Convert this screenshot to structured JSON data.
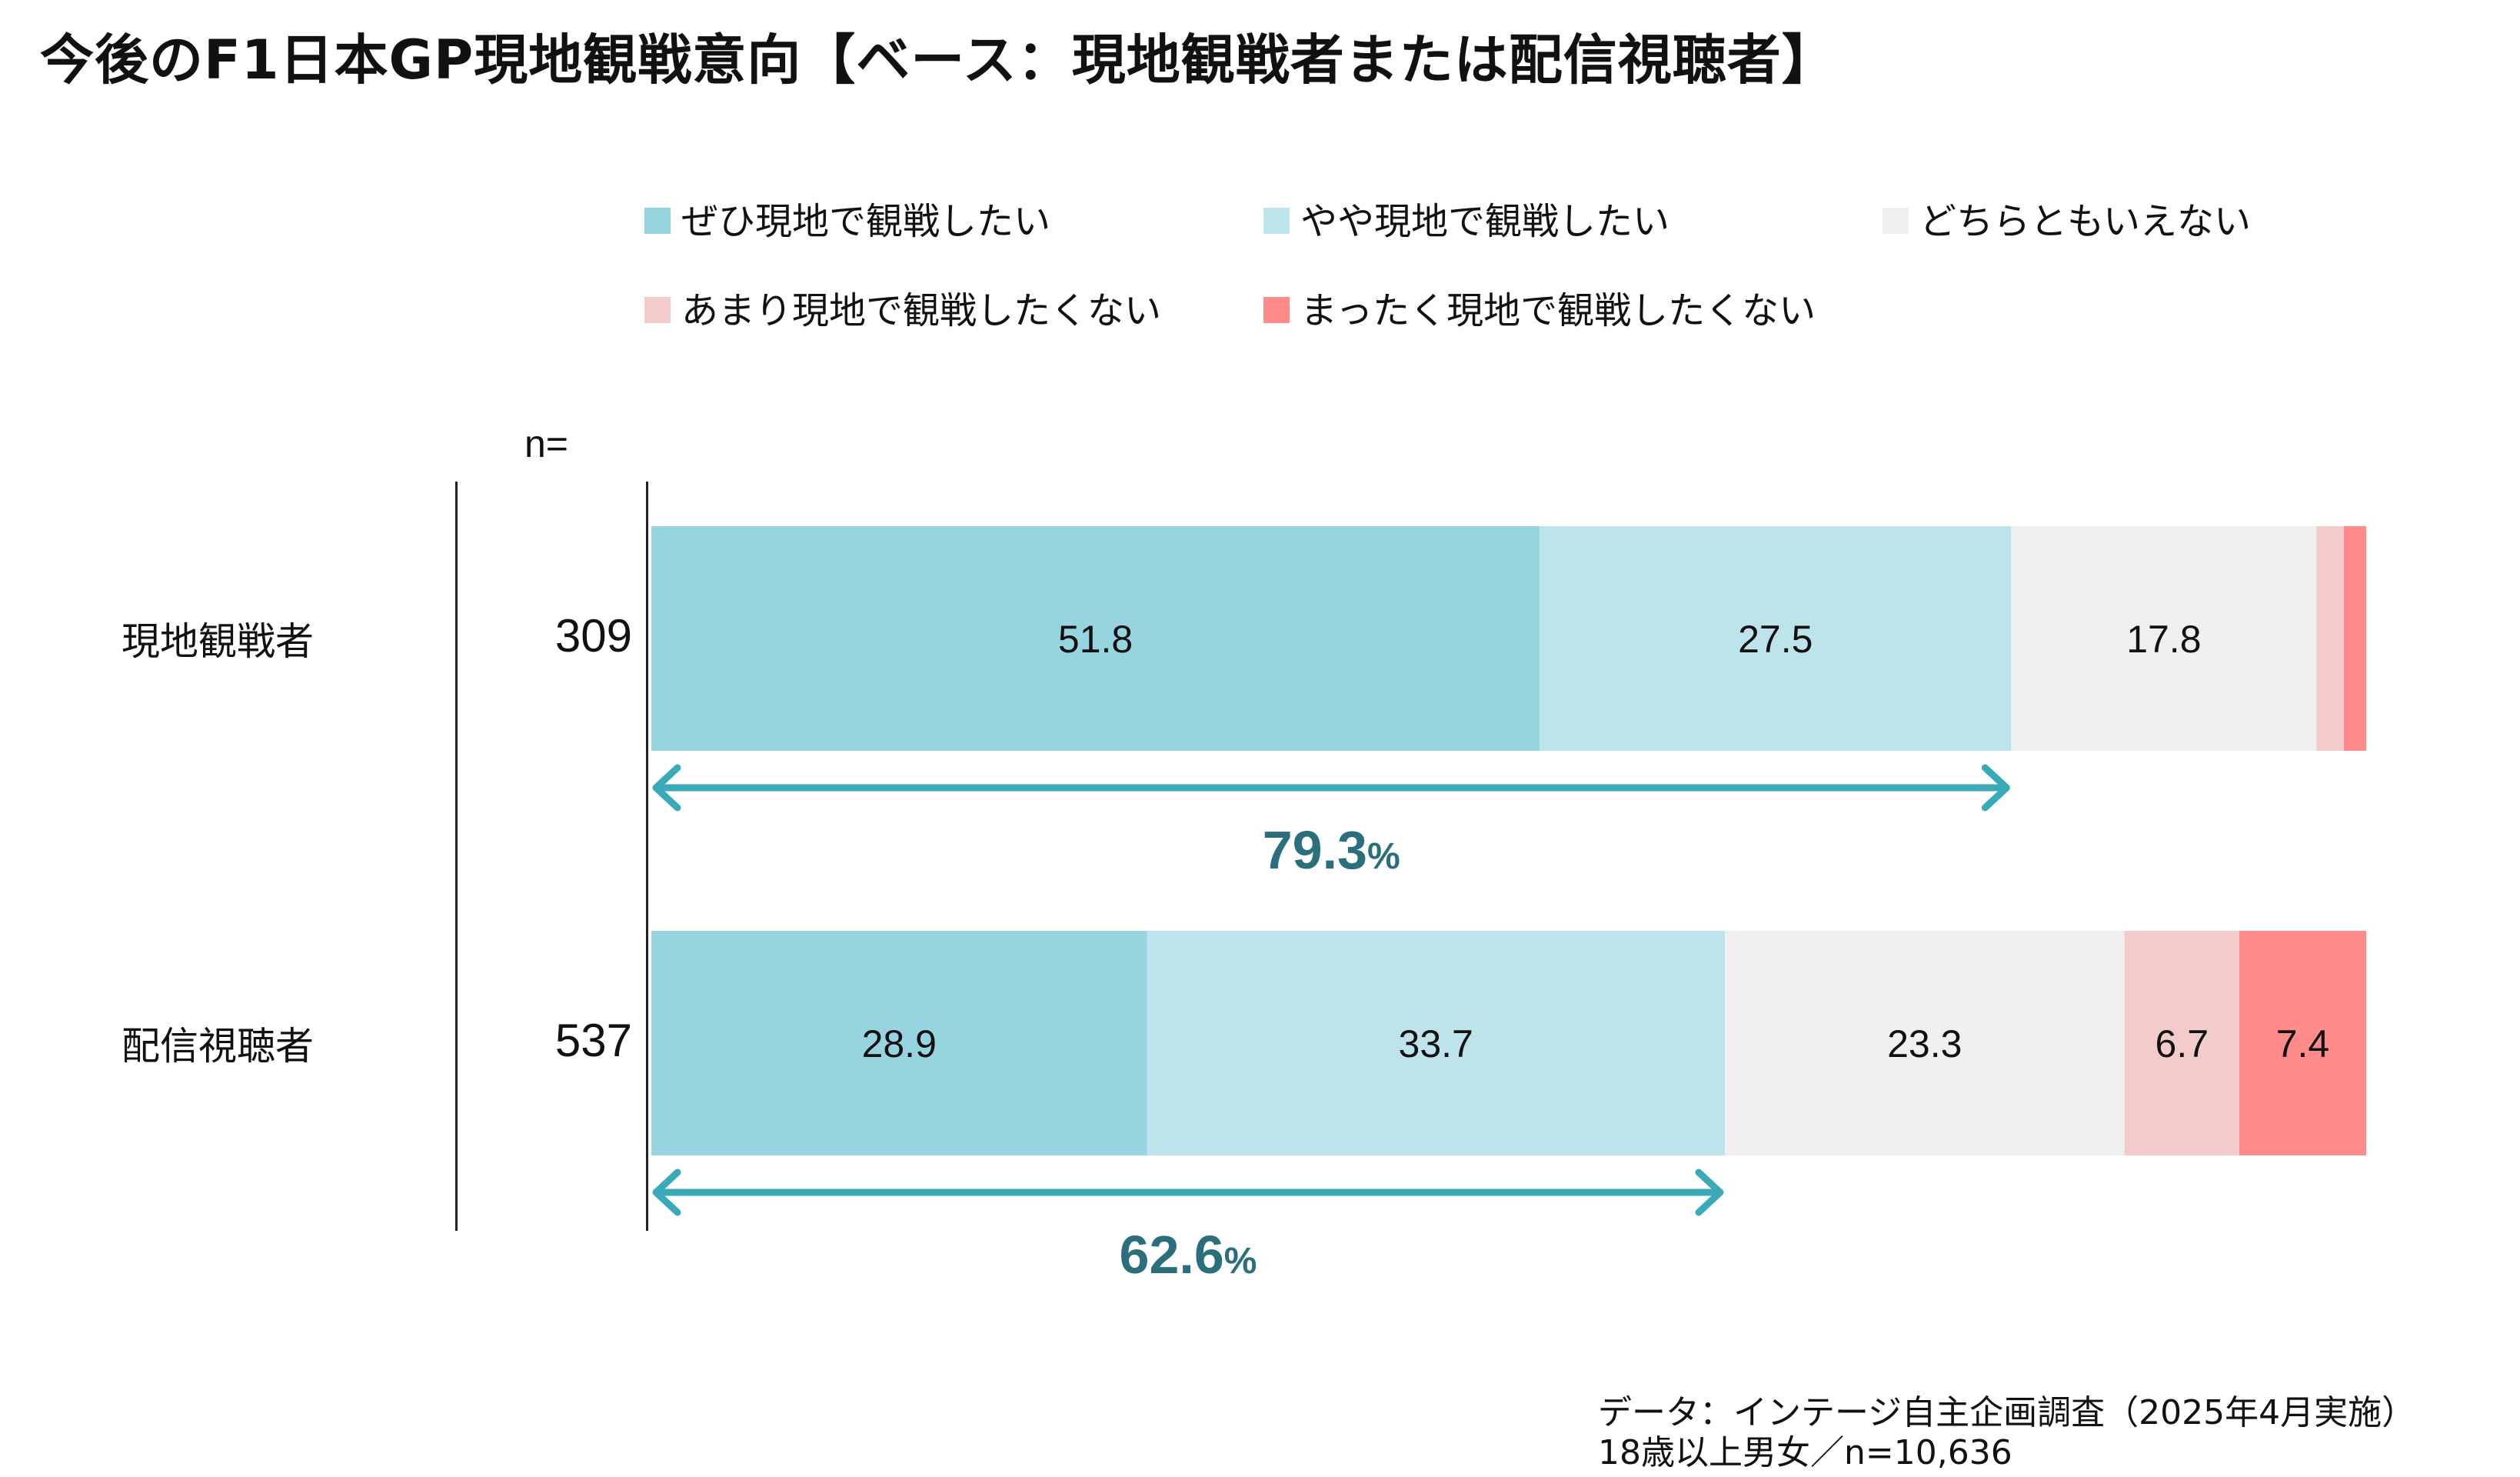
{
  "title": "今後のF1日本GP現地観戦意向【ベース：現地観戦者または配信視聴者】",
  "n_label": "n=",
  "footer": {
    "line1": "データ：インテージ自主企画調査（2025年4月実施）",
    "line2": "18歳以上男女／n=10,636"
  },
  "chart_data": {
    "type": "bar",
    "orientation": "horizontal",
    "stacked": true,
    "unit": "%",
    "categories": [
      "現地観戦者",
      "配信視聴者"
    ],
    "n": [
      "309",
      "537"
    ],
    "series": [
      {
        "name": "ぜひ現地で観戦したい",
        "color": "#96d4df",
        "values": [
          51.8,
          28.9
        ],
        "labels": [
          "51.8",
          "28.9"
        ]
      },
      {
        "name": "やや現地で観戦したい",
        "color": "#bde3eb",
        "values": [
          27.5,
          33.7
        ],
        "labels": [
          "27.5",
          "33.7"
        ]
      },
      {
        "name": "どちらともいえない",
        "color": "#f0f0f0",
        "values": [
          17.8,
          23.3
        ],
        "labels": [
          "17.8",
          "23.3"
        ]
      },
      {
        "name": "あまり現地で観戦したくない",
        "color": "#f4cbcb",
        "values": [
          1.6,
          6.7
        ],
        "labels": [
          "",
          "6.7"
        ]
      },
      {
        "name": "まったく現地で観戦したくない",
        "color": "#ff8b8b",
        "values": [
          1.3,
          7.4
        ],
        "labels": [
          "",
          "7.4"
        ]
      }
    ],
    "totals": [
      {
        "value": "79.3",
        "unit": "%"
      },
      {
        "value": "62.6",
        "unit": "%"
      }
    ],
    "arrow_color": "#3aaab9",
    "total_text_color": "#2b6f7c",
    "xlim": [
      0,
      100
    ],
    "legend": "top"
  }
}
